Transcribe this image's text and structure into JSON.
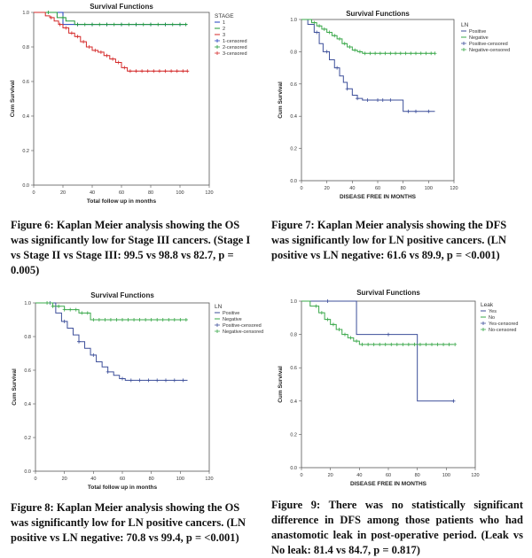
{
  "chart_data": [
    {
      "type": "line",
      "title": "Survival Functions",
      "xlabel": "Total follow up in months",
      "ylabel": "Cum Survival",
      "xlim": [
        0,
        120
      ],
      "ylim": [
        0,
        1.0
      ],
      "xticks": [
        "0",
        "20",
        "40",
        "60",
        "80",
        "100",
        "120"
      ],
      "yticks": [
        "0.0",
        "0.2",
        "0.4",
        "0.6",
        "0.8",
        "1.0"
      ],
      "legend": {
        "title": "STAGE",
        "position": "top-right",
        "entries": [
          "1",
          "2",
          "3",
          "1-censored",
          "2-censored",
          "3-censored"
        ]
      },
      "series": [
        {
          "name": "1",
          "color": "#1f3fbf",
          "x": [
            0,
            20,
            105
          ],
          "y": [
            1.0,
            0.93,
            0.93
          ],
          "censored_x": [
            30,
            40,
            50,
            60,
            70,
            80,
            90,
            100
          ]
        },
        {
          "name": "2",
          "color": "#1f9a3a",
          "x": [
            0,
            16,
            22,
            28,
            105
          ],
          "y": [
            1.0,
            0.97,
            0.95,
            0.93,
            0.93
          ],
          "censored_x": [
            10,
            20,
            30,
            35,
            40,
            45,
            50,
            55,
            60,
            65,
            70,
            75,
            80,
            85,
            90,
            95,
            100,
            104
          ]
        },
        {
          "name": "3",
          "color": "#d42a2a",
          "x": [
            0,
            8,
            11,
            14,
            17,
            20,
            24,
            28,
            32,
            36,
            40,
            44,
            48,
            52,
            56,
            60,
            64,
            105
          ],
          "y": [
            1.0,
            0.98,
            0.97,
            0.95,
            0.93,
            0.91,
            0.88,
            0.86,
            0.83,
            0.8,
            0.78,
            0.77,
            0.75,
            0.73,
            0.71,
            0.68,
            0.66,
            0.66
          ],
          "censored_x": [
            12,
            18,
            22,
            26,
            30,
            34,
            38,
            42,
            46,
            50,
            54,
            58,
            62,
            66,
            70,
            74,
            78,
            82,
            86,
            90,
            94,
            98,
            102,
            105
          ]
        }
      ]
    },
    {
      "type": "line",
      "title": "Survival Functions",
      "xlabel": "DISEASE FREE IN MONTHS",
      "ylabel": "Cum Survival",
      "xlim": [
        0,
        120
      ],
      "ylim": [
        0,
        1.0
      ],
      "xticks": [
        "0",
        "20",
        "40",
        "60",
        "80",
        "100",
        "120"
      ],
      "yticks": [
        "0.0",
        "0.2",
        "0.4",
        "0.6",
        "0.8",
        "1.0"
      ],
      "legend": {
        "title": "LN",
        "position": "top-right",
        "entries": [
          "Positive",
          "Negative",
          "Positive-censored",
          "Negative-censored"
        ]
      },
      "series": [
        {
          "name": "Positive",
          "color": "#3d4f9a",
          "x": [
            0,
            5,
            10,
            14,
            17,
            22,
            26,
            30,
            33,
            36,
            40,
            44,
            48,
            56,
            80,
            105
          ],
          "y": [
            1.0,
            0.97,
            0.92,
            0.85,
            0.8,
            0.75,
            0.7,
            0.65,
            0.61,
            0.57,
            0.53,
            0.51,
            0.5,
            0.5,
            0.43,
            0.43
          ],
          "censored_x": [
            12,
            20,
            28,
            36,
            44,
            52,
            60,
            64,
            70,
            84,
            90,
            100
          ]
        },
        {
          "name": "Negative",
          "color": "#3aa84a",
          "x": [
            0,
            8,
            12,
            16,
            20,
            24,
            28,
            32,
            36,
            40,
            44,
            48,
            105
          ],
          "y": [
            1.0,
            0.98,
            0.96,
            0.94,
            0.92,
            0.9,
            0.88,
            0.85,
            0.83,
            0.81,
            0.8,
            0.79,
            0.79
          ],
          "censored_x": [
            10,
            14,
            18,
            22,
            26,
            30,
            34,
            38,
            42,
            46,
            50,
            54,
            58,
            62,
            66,
            70,
            74,
            78,
            82,
            86,
            90,
            94,
            98,
            102,
            105
          ]
        }
      ]
    },
    {
      "type": "line",
      "title": "Survival Functions",
      "xlabel": "Total follow up in months",
      "ylabel": "Cum Survival",
      "xlim": [
        0,
        120
      ],
      "ylim": [
        0,
        1.0
      ],
      "xticks": [
        "0",
        "20",
        "40",
        "60",
        "80",
        "100",
        "120"
      ],
      "yticks": [
        "0.0",
        "0.2",
        "0.4",
        "0.6",
        "0.8",
        "1.0"
      ],
      "legend": {
        "title": "LN",
        "position": "top-right",
        "entries": [
          "Positive",
          "Negative",
          "Positive-censored",
          "Negative-censored"
        ]
      },
      "series": [
        {
          "name": "Positive",
          "color": "#3d4f9a",
          "x": [
            0,
            14,
            18,
            22,
            26,
            30,
            34,
            38,
            42,
            46,
            50,
            54,
            58,
            62,
            105
          ],
          "y": [
            1.0,
            0.94,
            0.89,
            0.85,
            0.81,
            0.77,
            0.73,
            0.69,
            0.65,
            0.62,
            0.59,
            0.57,
            0.55,
            0.54,
            0.54
          ],
          "censored_x": [
            10,
            20,
            30,
            40,
            50,
            60,
            66,
            72,
            78,
            84,
            90,
            96,
            102
          ]
        },
        {
          "name": "Negative",
          "color": "#3aa84a",
          "x": [
            0,
            12,
            20,
            30,
            38,
            105
          ],
          "y": [
            1.0,
            0.98,
            0.96,
            0.94,
            0.9,
            0.9
          ],
          "censored_x": [
            8,
            12,
            16,
            20,
            24,
            28,
            32,
            36,
            40,
            44,
            48,
            52,
            56,
            60,
            64,
            68,
            72,
            76,
            80,
            84,
            88,
            92,
            96,
            100,
            104
          ]
        }
      ]
    },
    {
      "type": "line",
      "title": "Survival Functions",
      "xlabel": "DISEASE FREE IN MONTHS",
      "ylabel": "Cum Survival",
      "xlim": [
        0,
        120
      ],
      "ylim": [
        0,
        1.0
      ],
      "xticks": [
        "0",
        "20",
        "40",
        "60",
        "80",
        "100",
        "120"
      ],
      "yticks": [
        "0.0",
        "0.2",
        "0.4",
        "0.6",
        "0.8",
        "1.0"
      ],
      "legend": {
        "title": "Leak",
        "position": "top-right",
        "entries": [
          "Yes",
          "No",
          "Yes-censored",
          "No-censored"
        ]
      },
      "series": [
        {
          "name": "Yes",
          "color": "#3d4f9a",
          "x": [
            0,
            35,
            38,
            78,
            80,
            105
          ],
          "y": [
            1.0,
            1.0,
            0.8,
            0.8,
            0.4,
            0.4
          ],
          "censored_x": [
            18,
            60,
            105
          ]
        },
        {
          "name": "No",
          "color": "#3aa84a",
          "x": [
            0,
            6,
            12,
            16,
            20,
            24,
            28,
            32,
            36,
            40,
            105
          ],
          "y": [
            1.0,
            0.97,
            0.93,
            0.89,
            0.86,
            0.83,
            0.8,
            0.78,
            0.76,
            0.74,
            0.74
          ],
          "censored_x": [
            10,
            14,
            18,
            22,
            26,
            30,
            34,
            38,
            42,
            46,
            50,
            54,
            58,
            62,
            66,
            70,
            74,
            78,
            82,
            86,
            90,
            94,
            98,
            102,
            106
          ]
        }
      ]
    }
  ],
  "captions": {
    "fig6": "Figure 6: Kaplan Meier analysis showing the OS was significantly low for Stage III cancers. (Stage I vs Stage II vs Stage III: 99.5 vs 98.8 vs 82.7, p = 0.005)",
    "fig7": "Figure 7: Kaplan Meier analysis showing the DFS was significantly low for LN positive cancers. (LN positive vs LN negative: 61.6 vs 89.9, p = <0.001)",
    "fig8": "Figure 8: Kaplan Meier analysis showing the OS was significantly low for LN positive cancers. (LN positive vs LN negative: 70.8 vs 99.4, p = <0.001)",
    "fig9": "Figure 9: There was no statistically significant difference in DFS among those patients who had anastomotic leak in post-operative period. (Leak vs No leak: 81.4 vs 84.7, p = 0.817)"
  }
}
